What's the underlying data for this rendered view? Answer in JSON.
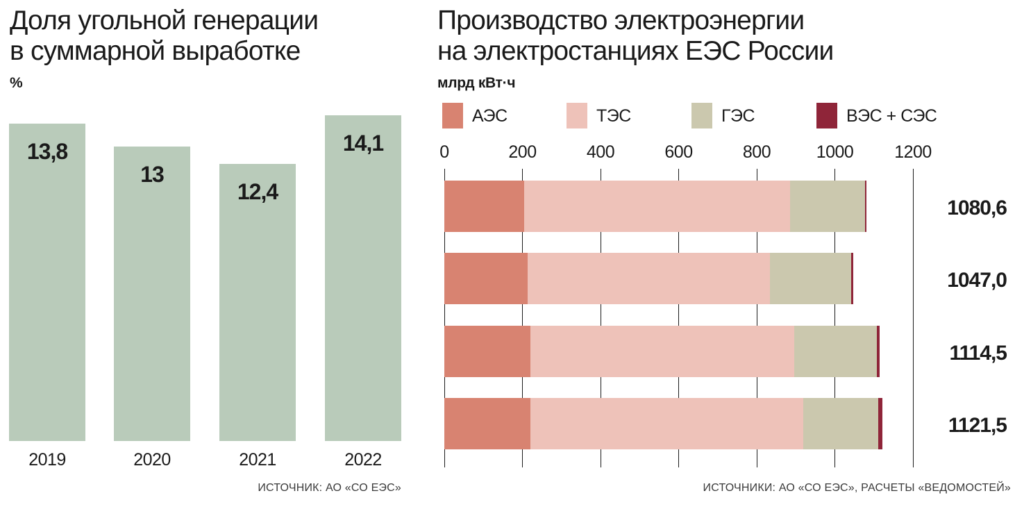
{
  "chart_data": [
    {
      "type": "bar",
      "title": "Доля угольной генерации в суммарной выработке",
      "title_lines": [
        "Доля угольной генерации",
        "в суммарной выработке"
      ],
      "unit": "%",
      "categories": [
        "2019",
        "2020",
        "2021",
        "2022"
      ],
      "values": [
        13.8,
        13,
        12.4,
        14.1
      ],
      "value_labels": [
        "13,8",
        "13",
        "12,4",
        "14,1"
      ],
      "bar_color": "#b9cbba",
      "grid": false,
      "source": "ИСТОЧНИК: АО «СО ЕЭС»"
    },
    {
      "type": "bar-horizontal-stacked",
      "title": "Производство электроэнергии на электростанциях ЕЭС России",
      "title_lines": [
        "Производство электроэнергии",
        "на электростанциях ЕЭС России"
      ],
      "unit": "млрд кВт·ч",
      "xlim": [
        0,
        1200
      ],
      "x_ticks": [
        0,
        200,
        400,
        600,
        800,
        1000,
        1200
      ],
      "grid": true,
      "legend_position": "top",
      "series_names": [
        "АЭС",
        "ТЭС",
        "ГЭС",
        "ВЭС + СЭС"
      ],
      "series_colors": [
        "#d88371",
        "#eec2b9",
        "#cbc8ae",
        "#8f2539"
      ],
      "rows": [
        {
          "total": 1080.6,
          "total_label": "1080,6",
          "segments": [
            205,
            680,
            193,
            2.6
          ]
        },
        {
          "total": 1047.0,
          "total_label": "1047,0",
          "segments": [
            213,
            621,
            207,
            6.0
          ]
        },
        {
          "total": 1114.5,
          "total_label": "1114,5",
          "segments": [
            220,
            676,
            212,
            6.5
          ]
        },
        {
          "total": 1121.5,
          "total_label": "1121,5",
          "segments": [
            221,
            698,
            192,
            10.5
          ]
        }
      ],
      "source": "ИСТОЧНИКИ: АО «СО ЕЭС», РАСЧЕТЫ «ВЕДОМОСТЕЙ»"
    }
  ]
}
